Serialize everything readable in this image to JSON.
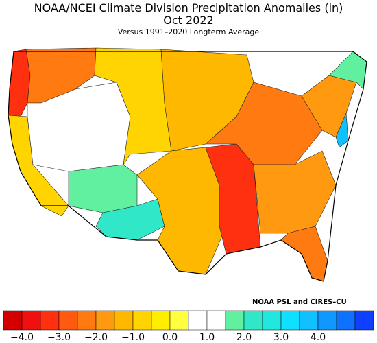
{
  "title": "NOAA/NCEI Climate Division Precipitation Anomalies (in)",
  "period": "Oct 2022",
  "subtitle": "Versus 1991–2020 Longterm Average",
  "credit": "NOAA PSL and CIRES–CU",
  "colorbar": {
    "colors": [
      "#d40000",
      "#f01010",
      "#ff3010",
      "#ff5a10",
      "#ff7a10",
      "#ff9a10",
      "#ffb800",
      "#ffd400",
      "#ffee00",
      "#ffff40",
      "#ffffff",
      "#ffffff",
      "#60f0a0",
      "#30e8c8",
      "#20e8e0",
      "#10e0ff",
      "#10c0ff",
      "#1098ff",
      "#1070ff",
      "#1040ff"
    ],
    "tick_labels": [
      "−4.0",
      "−3.0",
      "−2.0",
      "−1.0",
      "0.0",
      "1.0",
      "2.0",
      "3.0",
      "4.0"
    ]
  },
  "map_regions": [
    {
      "name": "pacific-nw-coast",
      "color": "#ff3010"
    },
    {
      "name": "northwest-interior",
      "color": "#ff7a10"
    },
    {
      "name": "california",
      "color": "#ffd400"
    },
    {
      "name": "great-basin",
      "color": "#ffffff"
    },
    {
      "name": "northern-plains",
      "color": "#ffd400"
    },
    {
      "name": "upper-midwest",
      "color": "#ffb800"
    },
    {
      "name": "four-corners",
      "color": "#60f0a0"
    },
    {
      "name": "new-mexico",
      "color": "#30e8c8"
    },
    {
      "name": "texas",
      "color": "#ffb800"
    },
    {
      "name": "lower-mississippi",
      "color": "#ff3010"
    },
    {
      "name": "ohio-valley",
      "color": "#ff7a10"
    },
    {
      "name": "southeast",
      "color": "#ff9a10"
    },
    {
      "name": "florida",
      "color": "#ff7a10"
    },
    {
      "name": "northeast",
      "color": "#ff9a10"
    },
    {
      "name": "new-england",
      "color": "#60f0a0"
    },
    {
      "name": "mid-atlantic-coast",
      "color": "#10c0ff"
    }
  ]
}
